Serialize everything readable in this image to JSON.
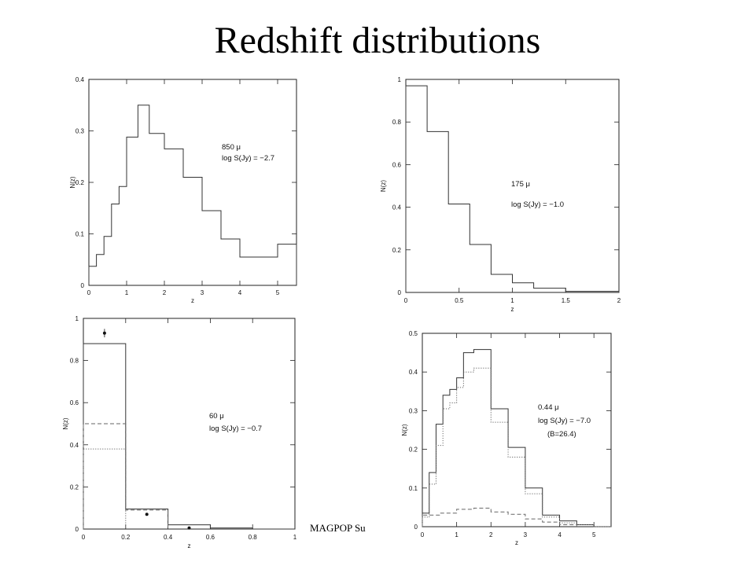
{
  "slide": {
    "title": "Redshift distributions",
    "footer": "MAGPOP Su"
  },
  "chart_data": [
    {
      "type": "histogram",
      "xlabel": "z",
      "ylabel": "N(z)",
      "xlim": [
        0,
        5.5
      ],
      "ylim": [
        0,
        0.4
      ],
      "xticks": [
        0,
        1,
        2,
        3,
        4,
        5
      ],
      "yticks": [
        0,
        0.1,
        0.2,
        0.3,
        0.4
      ],
      "ytick_labels": [
        "0",
        "0.1",
        "0.2",
        "0.3",
        "0.4"
      ],
      "annotations": [
        "850 μ",
        "log S(Jy) = −2.7"
      ],
      "series": [
        {
          "style": "solid",
          "edges": [
            0,
            0.2,
            0.4,
            0.6,
            0.8,
            1.0,
            1.3,
            1.6,
            2.0,
            2.5,
            3.0,
            3.5,
            4.0,
            4.5,
            5.0,
            5.5
          ],
          "values": [
            0.037,
            0.06,
            0.095,
            0.158,
            0.192,
            0.288,
            0.35,
            0.295,
            0.265,
            0.21,
            0.145,
            0.09,
            0.055,
            0.055,
            0.08
          ]
        }
      ],
      "points": []
    },
    {
      "type": "histogram",
      "xlabel": "z",
      "ylabel": "N(z)",
      "xlim": [
        0,
        2
      ],
      "ylim": [
        0,
        1
      ],
      "xticks": [
        0,
        0.5,
        1,
        1.5,
        2
      ],
      "yticks": [
        0,
        0.2,
        0.4,
        0.6,
        0.8,
        1
      ],
      "xtick_labels": [
        "0",
        "0.5",
        "1",
        "1.5",
        "2"
      ],
      "ytick_labels": [
        "0",
        "0.2",
        "0.4",
        "0.6",
        "0.8",
        "1"
      ],
      "annotations": [
        "175 μ",
        "log S(Jy) = −1.0"
      ],
      "series": [
        {
          "style": "solid",
          "edges": [
            0,
            0.2,
            0.4,
            0.6,
            0.8,
            1.0,
            1.2,
            1.5,
            2.0
          ],
          "values": [
            0.97,
            0.755,
            0.415,
            0.225,
            0.085,
            0.045,
            0.02,
            0.005
          ]
        }
      ],
      "points": []
    },
    {
      "type": "histogram",
      "xlabel": "z",
      "ylabel": "N(z)",
      "xlim": [
        0,
        1
      ],
      "ylim": [
        0,
        1
      ],
      "xticks": [
        0,
        0.2,
        0.4,
        0.6,
        0.8,
        1
      ],
      "yticks": [
        0,
        0.2,
        0.4,
        0.6,
        0.8,
        1
      ],
      "xtick_labels": [
        "0",
        "0.2",
        "0.4",
        "0.6",
        "0.8",
        "1"
      ],
      "ytick_labels": [
        "0",
        "0.2",
        "0.4",
        "0.6",
        "0.8",
        "1"
      ],
      "annotations": [
        "60 μ",
        "log S(Jy) = −0.7"
      ],
      "series": [
        {
          "style": "solid",
          "edges": [
            0,
            0.2,
            0.4,
            0.6,
            0.8,
            1.0
          ],
          "values": [
            0.88,
            0.095,
            0.02,
            0.005,
            0.0
          ]
        },
        {
          "style": "dashed",
          "edges": [
            0,
            0.2,
            0.4
          ],
          "values": [
            0.5,
            0.09
          ]
        },
        {
          "style": "dotted",
          "edges": [
            0,
            0.2
          ],
          "values": [
            0.38
          ]
        }
      ],
      "points": [
        {
          "x": 0.1,
          "y": 0.93,
          "err": 0.02
        },
        {
          "x": 0.3,
          "y": 0.07,
          "err": 0
        },
        {
          "x": 0.5,
          "y": 0.005,
          "err": 0
        }
      ]
    },
    {
      "type": "histogram",
      "xlabel": "z",
      "ylabel": "N(z)",
      "xlim": [
        0,
        5.5
      ],
      "ylim": [
        0,
        0.5
      ],
      "xticks": [
        0,
        1,
        2,
        3,
        4,
        5
      ],
      "yticks": [
        0,
        0.1,
        0.2,
        0.3,
        0.4,
        0.5
      ],
      "ytick_labels": [
        "0",
        "0.1",
        "0.2",
        "0.3",
        "0.4",
        "0.5"
      ],
      "annotations": [
        "0.44 μ",
        "log S(Jy) = −7.0",
        "(B=26.4)"
      ],
      "series": [
        {
          "style": "solid",
          "edges": [
            0,
            0.2,
            0.4,
            0.6,
            0.8,
            1.0,
            1.2,
            1.5,
            2.0,
            2.5,
            3.0,
            3.5,
            4.0,
            4.5,
            5.0,
            5.5
          ],
          "values": [
            0.035,
            0.14,
            0.265,
            0.34,
            0.355,
            0.385,
            0.45,
            0.458,
            0.305,
            0.205,
            0.1,
            0.03,
            0.015,
            0.005,
            0.0
          ]
        },
        {
          "style": "dotted",
          "edges": [
            0,
            0.2,
            0.4,
            0.6,
            0.8,
            1.0,
            1.2,
            1.5,
            2.0,
            2.5,
            3.0,
            3.5,
            4.0,
            4.5,
            5.0,
            5.5
          ],
          "values": [
            0.025,
            0.11,
            0.21,
            0.305,
            0.32,
            0.36,
            0.4,
            0.41,
            0.27,
            0.18,
            0.085,
            0.025,
            0.01,
            0.005,
            0.0
          ]
        },
        {
          "style": "dashed",
          "edges": [
            0,
            0.5,
            1.0,
            1.5,
            2.0,
            2.5,
            3.0,
            3.5,
            4.0,
            4.5
          ],
          "values": [
            0.03,
            0.035,
            0.045,
            0.048,
            0.038,
            0.032,
            0.02,
            0.012,
            0.005
          ]
        }
      ],
      "points": []
    }
  ]
}
